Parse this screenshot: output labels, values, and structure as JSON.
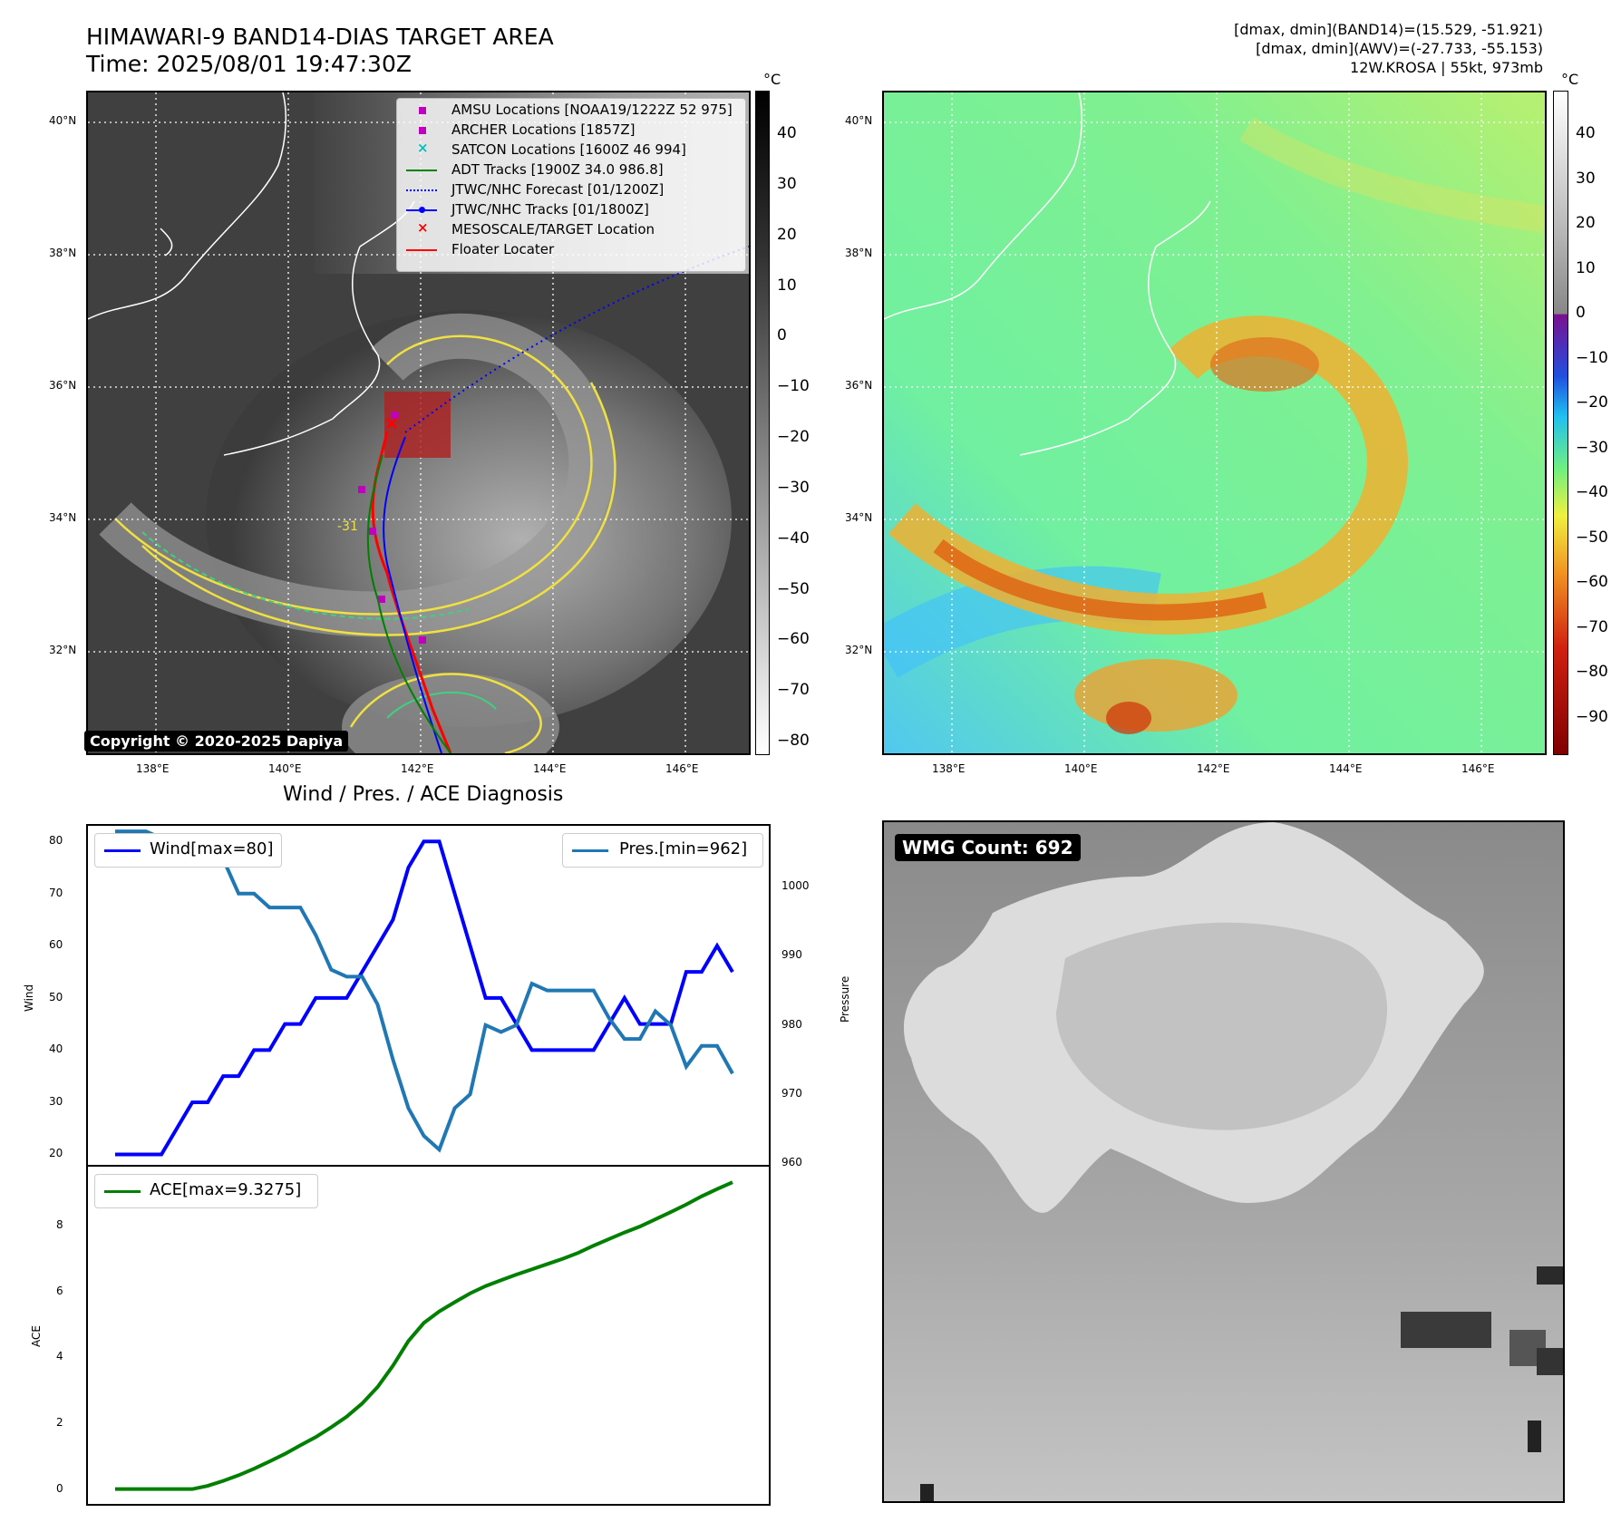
{
  "header": {
    "title_line1": "HIMAWARI-9 BAND14-DIAS TARGET AREA",
    "title_line2": "Time: 2025/08/01 19:47:30Z",
    "stats_line1": "[dmax, dmin](BAND14)=(15.529, -51.921)",
    "stats_line2": "[dmax, dmin](AWV)=(-27.733, -55.153)",
    "stats_line3": "12W.KROSA | 55kt, 973mb"
  },
  "map_axes": {
    "lat_labels": [
      "40°N",
      "38°N",
      "36°N",
      "34°N",
      "32°N"
    ],
    "lon_labels": [
      "138°E",
      "140°E",
      "142°E",
      "144°E",
      "146°E"
    ]
  },
  "ir_colorbar": {
    "unit": "°C",
    "ticks": [
      "40",
      "30",
      "20",
      "10",
      "0",
      "−10",
      "−20",
      "−30",
      "−40",
      "−50",
      "−60",
      "−70",
      "−80"
    ]
  },
  "wv_colorbar": {
    "unit": "°C",
    "ticks": [
      "40",
      "30",
      "20",
      "10",
      "0",
      "−10",
      "−20",
      "−30",
      "−40",
      "−50",
      "−60",
      "−70",
      "−80",
      "−90"
    ]
  },
  "legend": {
    "items": [
      {
        "label": "AMSU Locations [NOAA19/1222Z 52 975]",
        "marker": "square",
        "color": "#bf00bf"
      },
      {
        "label": "ARCHER Locations [1857Z]",
        "marker": "square",
        "color": "#bf00bf"
      },
      {
        "label": "SATCON Locations [1600Z 46 994]",
        "marker": "x",
        "color": "#00bfbf"
      },
      {
        "label": "ADT Tracks [1900Z 34.0 986.8]",
        "marker": "line",
        "color": "#008000"
      },
      {
        "label": "JTWC/NHC Forecast [01/1200Z]",
        "marker": "dotted",
        "color": "#0000ff"
      },
      {
        "label": "JTWC/NHC Tracks [01/1800Z]",
        "marker": "line-dot",
        "color": "#0000ff"
      },
      {
        "label": "MESOSCALE/TARGET Location",
        "marker": "x",
        "color": "#ff0000"
      },
      {
        "label": "Floater Locater",
        "marker": "line",
        "color": "#ff0000"
      }
    ]
  },
  "contour_label": "-31",
  "copyright": "Copyright © 2020-2025 Dapiya",
  "wmg": {
    "label": "WMG Count: 692"
  },
  "chart_data": {
    "type": "line",
    "title": "Wind / Pres. / ACE Diagnosis",
    "top_panel": {
      "ylabel_left": "Wind",
      "ylabel_right": "Pressure",
      "yticks_left": [
        20,
        30,
        40,
        50,
        60,
        70,
        80
      ],
      "yticks_right": [
        960,
        970,
        980,
        990,
        1000
      ],
      "ylim_left": [
        18,
        83
      ],
      "ylim_right": [
        959.8,
        1008.8
      ],
      "series": [
        {
          "name": "Wind[max=80]",
          "color": "#0000ff",
          "legend": "upper left",
          "values": [
            20,
            20,
            20,
            20,
            25,
            30,
            30,
            35,
            35,
            40,
            40,
            45,
            45,
            50,
            50,
            50,
            55,
            60,
            65,
            75,
            80,
            80,
            70,
            60,
            50,
            50,
            45,
            40,
            40,
            40,
            40,
            40,
            45,
            50,
            45,
            45,
            45,
            55,
            55,
            60,
            55
          ]
        },
        {
          "name": "Pres.[min=962]",
          "color": "#1f77b4",
          "legend": "upper right",
          "values": [
            1008,
            1008,
            1008,
            1007,
            1005,
            1005,
            1004,
            1004,
            999,
            999,
            997,
            997,
            997,
            993,
            988,
            987,
            987,
            983,
            975,
            968,
            964,
            962,
            968,
            970,
            980,
            979,
            980,
            986,
            985,
            985,
            985,
            985,
            981,
            978,
            978,
            982,
            980,
            974,
            977,
            977,
            973
          ]
        }
      ]
    },
    "bottom_panel": {
      "ylabel": "ACE",
      "yticks": [
        0,
        2,
        4,
        6,
        8
      ],
      "ylim": [
        -0.45,
        9.8
      ],
      "series": [
        {
          "name": "ACE[max=9.3275]",
          "color": "#008000",
          "legend": "upper left",
          "values": [
            0,
            0,
            0,
            0,
            0,
            0,
            0.1,
            0.25,
            0.42,
            0.62,
            0.84,
            1.07,
            1.33,
            1.58,
            1.88,
            2.2,
            2.6,
            3.1,
            3.75,
            4.5,
            5.05,
            5.4,
            5.68,
            5.95,
            6.17,
            6.35,
            6.52,
            6.68,
            6.84,
            7.0,
            7.18,
            7.4,
            7.6,
            7.8,
            7.98,
            8.2,
            8.42,
            8.65,
            8.9,
            9.12,
            9.3275
          ]
        }
      ]
    }
  },
  "colors": {
    "wind": "#0000ff",
    "pressure": "#1f77b4",
    "ace": "#008000",
    "contour_yellow": "#f0e040",
    "contour_green": "#40d080",
    "target_box": "#b02020"
  }
}
